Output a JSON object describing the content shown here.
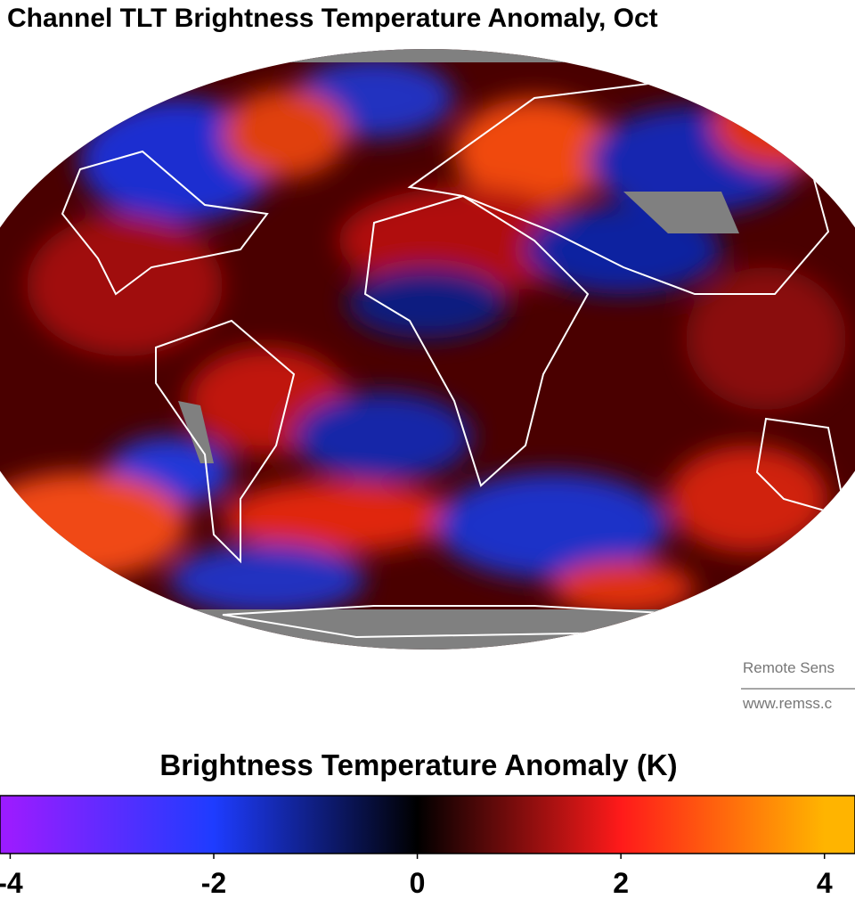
{
  "title": "Channel TLT Brightness Temperature Anomaly, Oct",
  "credit": [
    "Remote Sens",
    "www.remss.c"
  ],
  "colorbar": {
    "title": "Brightness Temperature Anomaly (K)",
    "lim": [
      -4.1,
      4.3
    ],
    "ticks": [
      -4,
      -2,
      0,
      2,
      4
    ],
    "colors": [
      "#9a1cff",
      "#1e3cff",
      "#000000",
      "#ff1a1a",
      "#ffb400"
    ]
  }
}
